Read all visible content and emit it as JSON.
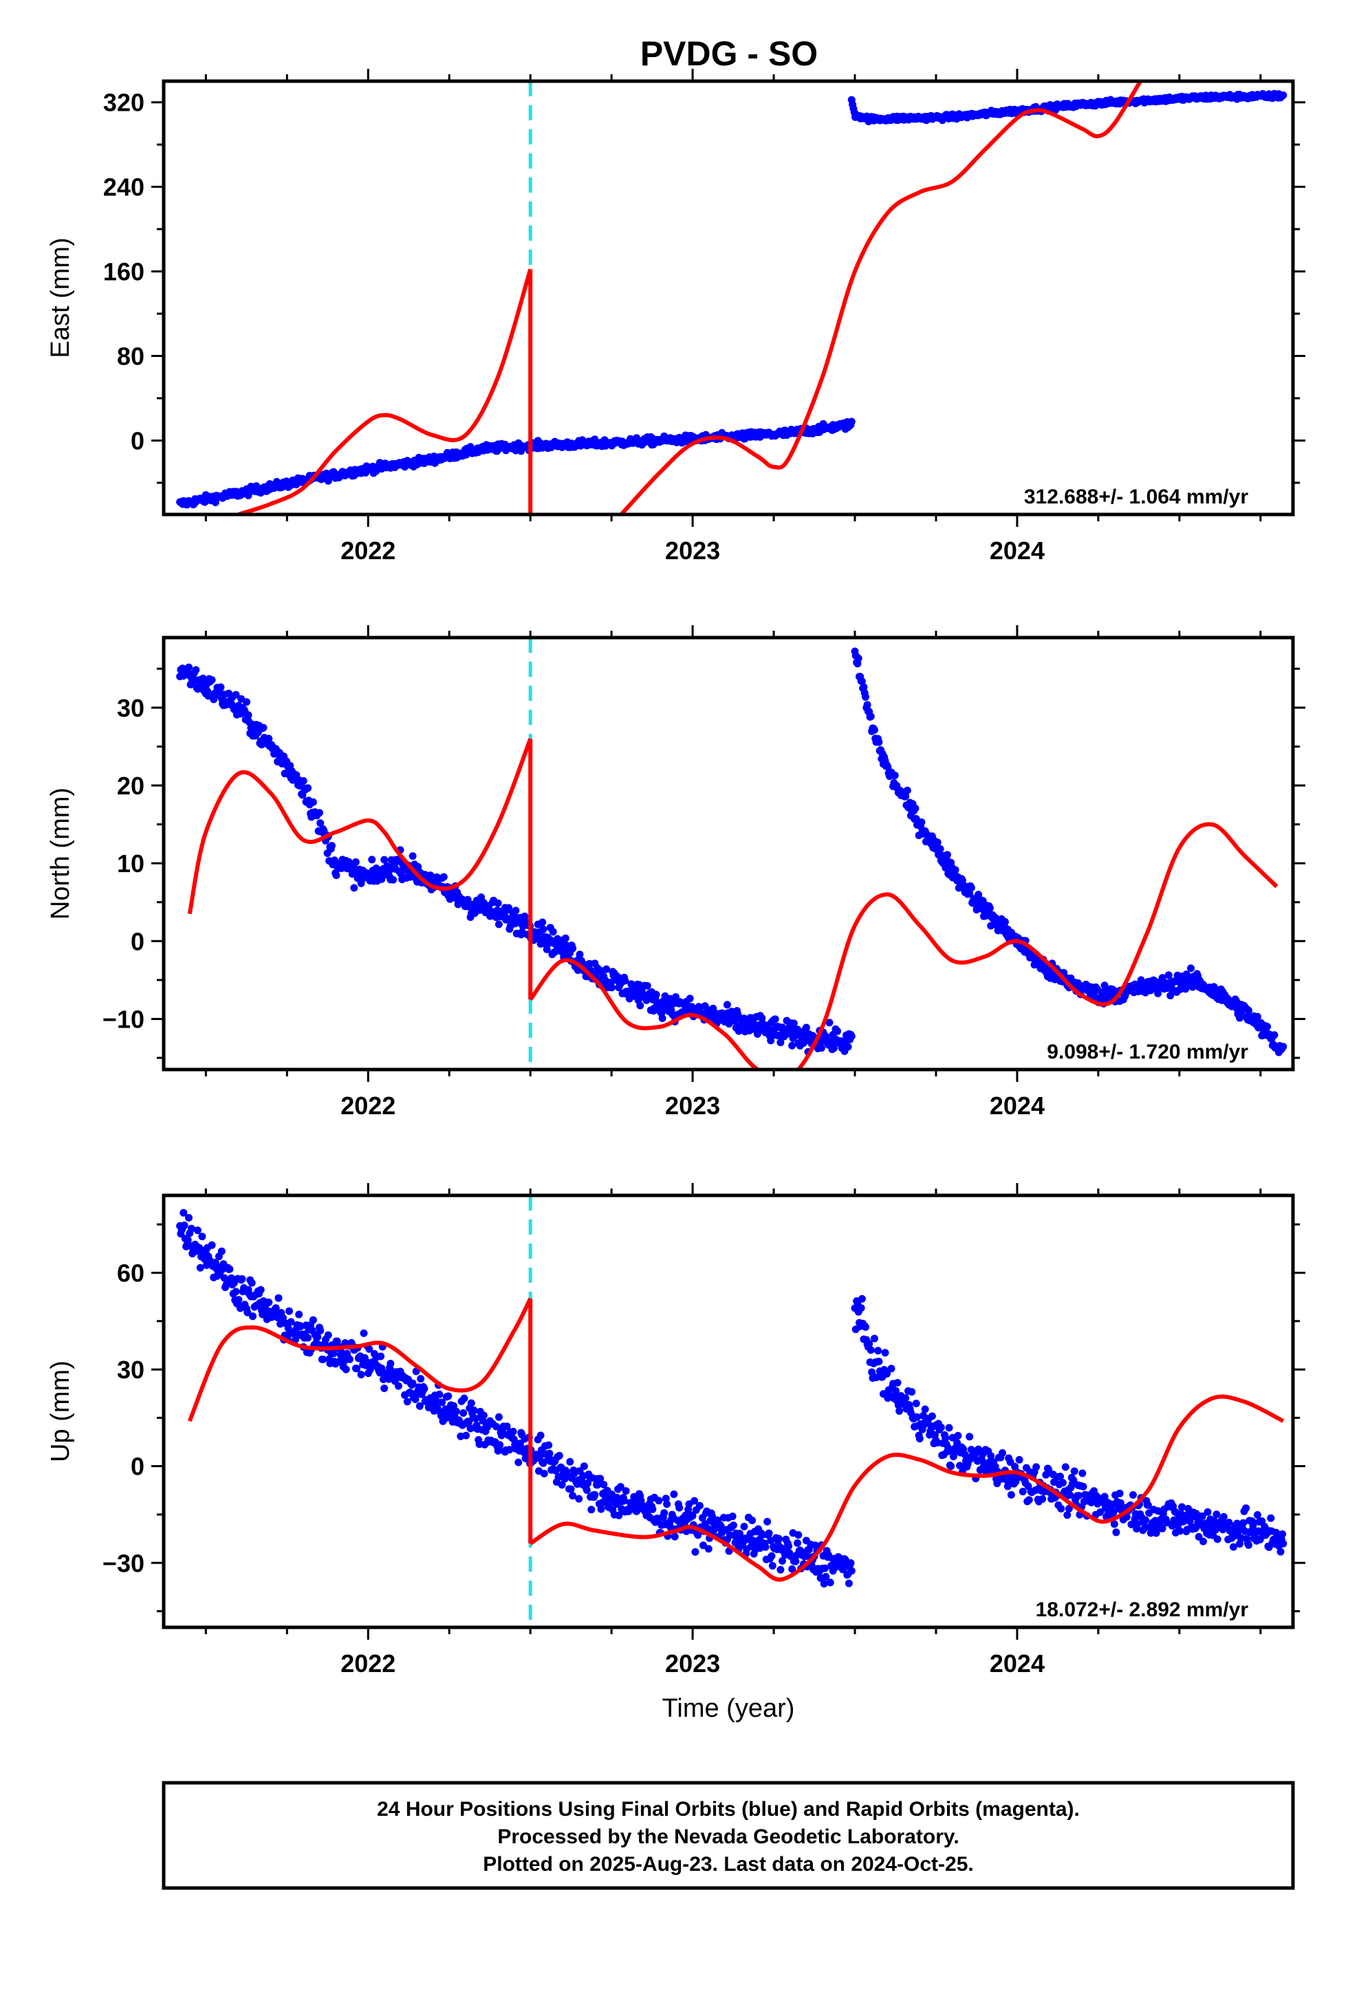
{
  "title": "PVDG - SO",
  "footer": {
    "lines": [
      "24 Hour Positions Using Final Orbits (blue) and Rapid Orbits (magenta).",
      "Processed by the Nevada Geodetic Laboratory.",
      "Plotted on 2025-Aug-23. Last data on 2024-Oct-25."
    ]
  },
  "colors": {
    "final_orbits": "#0000ff",
    "model_fit": "#ff0000",
    "event_line": "#22e0ee",
    "frame": "#000000"
  },
  "chart_data": [
    {
      "type": "scatter",
      "name": "east",
      "title": "PVDG - SO",
      "xlabel": "",
      "ylabel": "East (mm)",
      "xlim": [
        2021.37,
        2024.85
      ],
      "ylim": [
        -70,
        340
      ],
      "x_ticks": [
        2022,
        2023,
        2024
      ],
      "x_tick_labels": [
        "2022",
        "2023",
        "2024"
      ],
      "y_ticks": [
        0,
        80,
        160,
        240,
        320
      ],
      "y_tick_labels": [
        "0",
        "80",
        "160",
        "240",
        "320"
      ],
      "event_line_x": 2022.5,
      "rate_label": "312.688+/- 1.064 mm/yr",
      "observations": [
        {
          "x": [
            2021.42,
            2021.6,
            2021.8,
            2022.0,
            2022.2,
            2022.35,
            2022.5,
            2022.7,
            2022.9,
            2023.1,
            2023.3,
            2023.49
          ],
          "y": [
            -60,
            -50,
            -38,
            -27,
            -18,
            -8,
            -5,
            -3,
            0,
            3,
            7,
            15
          ],
          "noise": 3
        },
        {
          "x": [
            2023.49,
            2023.5,
            2023.55,
            2023.65,
            2023.8,
            2024.0,
            2024.2,
            2024.4,
            2024.6,
            2024.82
          ],
          "y": [
            322,
            308,
            304,
            305,
            306,
            312,
            318,
            322,
            325,
            326
          ],
          "noise": 2
        }
      ],
      "model": [
        {
          "x": [
            2021.6,
            2021.7,
            2021.8,
            2021.9,
            2022.0,
            2022.05,
            2022.1,
            2022.2,
            2022.3,
            2022.4,
            2022.5
          ],
          "y": [
            -70,
            -60,
            -45,
            -10,
            18,
            24,
            20,
            5,
            5,
            60,
            162
          ]
        },
        {
          "x": [
            2022.5,
            2022.5
          ],
          "y": [
            162,
            -70
          ]
        },
        {
          "x": [
            2022.78,
            2022.9,
            2023.0,
            2023.1,
            2023.2,
            2023.25,
            2023.3,
            2023.4,
            2023.5,
            2023.6,
            2023.7,
            2023.8,
            2023.9,
            2024.0,
            2024.05,
            2024.1,
            2024.2,
            2024.25,
            2024.3,
            2024.38
          ],
          "y": [
            -70,
            -30,
            -3,
            2,
            -15,
            -25,
            -15,
            60,
            160,
            215,
            235,
            245,
            275,
            305,
            312,
            310,
            295,
            288,
            300,
            340
          ]
        }
      ]
    },
    {
      "type": "scatter",
      "name": "north",
      "xlabel": "",
      "ylabel": "North (mm)",
      "xlim": [
        2021.37,
        2024.85
      ],
      "ylim": [
        -16.5,
        39
      ],
      "x_ticks": [
        2022,
        2023,
        2024
      ],
      "x_tick_labels": [
        "2022",
        "2023",
        "2024"
      ],
      "y_ticks": [
        -10,
        0,
        10,
        20,
        30
      ],
      "y_tick_labels": [
        "−10",
        "0",
        "10",
        "20",
        "30"
      ],
      "event_line_x": 2022.5,
      "rate_label": "9.098+/- 1.720 mm/yr",
      "observations": [
        {
          "x": [
            2021.42,
            2021.6,
            2021.8,
            2021.9,
            2022.0,
            2022.1,
            2022.3,
            2022.5,
            2022.7,
            2022.9,
            2023.1,
            2023.3,
            2023.49
          ],
          "y": [
            35,
            30,
            20,
            10,
            8,
            10,
            5,
            2,
            -4,
            -8,
            -10,
            -12,
            -13
          ],
          "noise": 1.3
        },
        {
          "x": [
            2023.5,
            2023.55,
            2023.6,
            2023.7,
            2023.8,
            2023.9,
            2024.0,
            2024.1,
            2024.25,
            2024.4,
            2024.55,
            2024.7,
            2024.82
          ],
          "y": [
            37,
            28,
            22,
            15,
            9,
            4,
            0,
            -4,
            -7,
            -6,
            -5,
            -9,
            -14
          ],
          "noise": 1
        }
      ],
      "model": [
        {
          "x": [
            2021.45,
            2021.5,
            2021.6,
            2021.7,
            2021.8,
            2021.9,
            2022.0,
            2022.05,
            2022.1,
            2022.2,
            2022.3,
            2022.4,
            2022.5
          ],
          "y": [
            3.5,
            14,
            21.5,
            19,
            13,
            14,
            15.5,
            14,
            11,
            7,
            8,
            15,
            26
          ]
        },
        {
          "x": [
            2022.5,
            2022.5
          ],
          "y": [
            26,
            -7.5
          ]
        },
        {
          "x": [
            2022.5,
            2022.6,
            2022.7,
            2022.8,
            2022.9,
            2023.0,
            2023.1,
            2023.2,
            2023.3,
            2023.4,
            2023.5,
            2023.6,
            2023.7,
            2023.8,
            2023.9,
            2024.0,
            2024.1,
            2024.2,
            2024.3,
            2024.4,
            2024.5,
            2024.6,
            2024.7,
            2024.8
          ],
          "y": [
            -7.5,
            -2.5,
            -5,
            -10.5,
            -11,
            -9.5,
            -12,
            -16.5,
            -17.5,
            -11,
            2,
            6,
            2,
            -2.5,
            -2,
            0,
            -3,
            -7,
            -7.5,
            1,
            12,
            15,
            11,
            7
          ]
        }
      ]
    },
    {
      "type": "scatter",
      "name": "up",
      "xlabel": "Time (year)",
      "ylabel": "Up (mm)",
      "xlim": [
        2021.37,
        2024.85
      ],
      "ylim": [
        -50,
        84
      ],
      "x_ticks": [
        2022,
        2023,
        2024
      ],
      "x_tick_labels": [
        "2022",
        "2023",
        "2024"
      ],
      "y_ticks": [
        -30,
        0,
        30,
        60
      ],
      "y_tick_labels": [
        "−30",
        "0",
        "30",
        "60"
      ],
      "event_line_x": 2022.5,
      "rate_label": "18.072+/- 2.892 mm/yr",
      "observations": [
        {
          "x": [
            2021.42,
            2021.6,
            2021.8,
            2022.0,
            2022.2,
            2022.4,
            2022.5,
            2022.7,
            2022.9,
            2023.1,
            2023.3,
            2023.49
          ],
          "y": [
            75,
            55,
            40,
            33,
            20,
            10,
            5,
            -8,
            -15,
            -20,
            -27,
            -32
          ],
          "noise": 5
        },
        {
          "x": [
            2023.5,
            2023.55,
            2023.6,
            2023.7,
            2023.8,
            2024.0,
            2024.2,
            2024.4,
            2024.6,
            2024.82
          ],
          "y": [
            50,
            35,
            25,
            15,
            5,
            -3,
            -10,
            -15,
            -18,
            -22
          ],
          "noise": 5
        }
      ],
      "model": [
        {
          "x": [
            2021.45,
            2021.55,
            2021.65,
            2021.8,
            2021.95,
            2022.05,
            2022.15,
            2022.25,
            2022.35,
            2022.45,
            2022.5
          ],
          "y": [
            14,
            38,
            43,
            37,
            37,
            38,
            31,
            24,
            26,
            42,
            52
          ]
        },
        {
          "x": [
            2022.5,
            2022.5
          ],
          "y": [
            52,
            -24
          ]
        },
        {
          "x": [
            2022.5,
            2022.6,
            2022.7,
            2022.85,
            2022.95,
            2023.0,
            2023.1,
            2023.2,
            2023.28,
            2023.4,
            2023.5,
            2023.6,
            2023.7,
            2023.8,
            2023.9,
            2024.0,
            2024.1,
            2024.2,
            2024.28,
            2024.4,
            2024.5,
            2024.6,
            2024.7,
            2024.82
          ],
          "y": [
            -24,
            -18,
            -20,
            -22,
            -20,
            -19,
            -24,
            -31,
            -35,
            -25,
            -6,
            3,
            2,
            -2,
            -3,
            -2,
            -7,
            -14,
            -17,
            -8,
            12,
            21,
            20,
            14
          ]
        }
      ]
    }
  ]
}
